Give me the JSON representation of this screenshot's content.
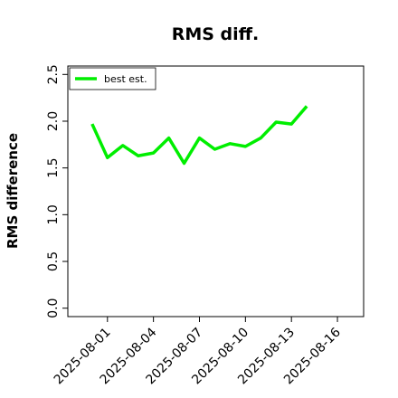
{
  "chart_data": {
    "type": "line",
    "title": "RMS diff.",
    "y_label": "RMS difference",
    "x": [
      "2025-07-31",
      "2025-08-01",
      "2025-08-02",
      "2025-08-03",
      "2025-08-04",
      "2025-08-05",
      "2025-08-06",
      "2025-08-07",
      "2025-08-08",
      "2025-08-09",
      "2025-08-10",
      "2025-08-11",
      "2025-08-12",
      "2025-08-13",
      "2025-08-14"
    ],
    "series": [
      {
        "name": "best est.",
        "color": "#00ee00",
        "values": [
          1.97,
          1.61,
          1.74,
          1.63,
          1.66,
          1.82,
          1.55,
          1.82,
          1.7,
          1.76,
          1.73,
          1.82,
          1.99,
          1.97,
          2.16
        ]
      }
    ],
    "xlim": [
      "2025-07-29T10:00Z",
      "2025-08-17T17:00Z"
    ],
    "xticks": [
      "2025-08-01",
      "2025-08-04",
      "2025-08-07",
      "2025-08-10",
      "2025-08-13",
      "2025-08-16"
    ],
    "ylim": [
      -0.09,
      2.59
    ],
    "yticks": [
      {
        "value": 0,
        "label": "0.0"
      },
      {
        "value": 0.5,
        "label": "0.5"
      },
      {
        "value": 1,
        "label": "1.0"
      },
      {
        "value": 1.5,
        "label": "1.5"
      },
      {
        "value": 2,
        "label": "2.0"
      },
      {
        "value": 2.5,
        "label": "2.5"
      }
    ],
    "legend": "upper left",
    "grid": false
  }
}
